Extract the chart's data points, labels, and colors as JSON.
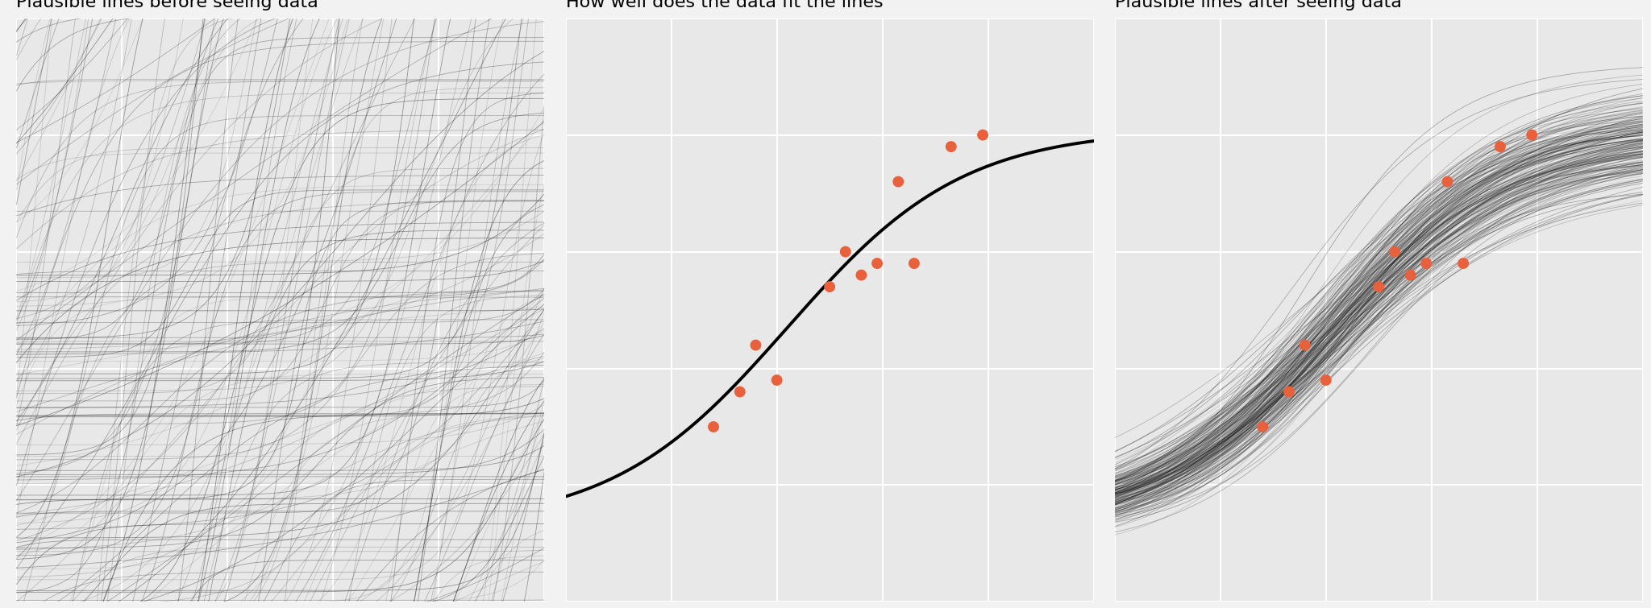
{
  "title1": "Plausible lines before seeing data",
  "title2": "How well does the data fit the lines",
  "title3": "Plausible lines after seeing data",
  "bg_color": "#e8e8e8",
  "fig_bg_color": "#f2f2f2",
  "line_color_prior": "#1a1a1a",
  "line_color_posterior": "#1a1a1a",
  "fit_line_color": "#000000",
  "dot_color": "#e8603c",
  "dot_size": 100,
  "title_fontsize": 16,
  "n_prior_lines": 300,
  "n_posterior_lines": 200,
  "data_x": [
    0.28,
    0.33,
    0.36,
    0.4,
    0.5,
    0.53,
    0.56,
    0.59,
    0.63,
    0.66,
    0.73,
    0.79
  ],
  "data_y": [
    0.3,
    0.36,
    0.44,
    0.38,
    0.54,
    0.6,
    0.56,
    0.58,
    0.72,
    0.58,
    0.78,
    0.8
  ],
  "seed_prior": 42,
  "seed_posterior": 77,
  "L_fit": 0.68,
  "k_fit": 6.0,
  "x0_fit": 0.42,
  "b_fit": 0.13,
  "xmin": 0.0,
  "xmax": 1.0,
  "ymin": 0.0,
  "ymax": 1.0,
  "grid_color": "#ffffff",
  "grid_lw": 1.5,
  "n_grid": 7
}
